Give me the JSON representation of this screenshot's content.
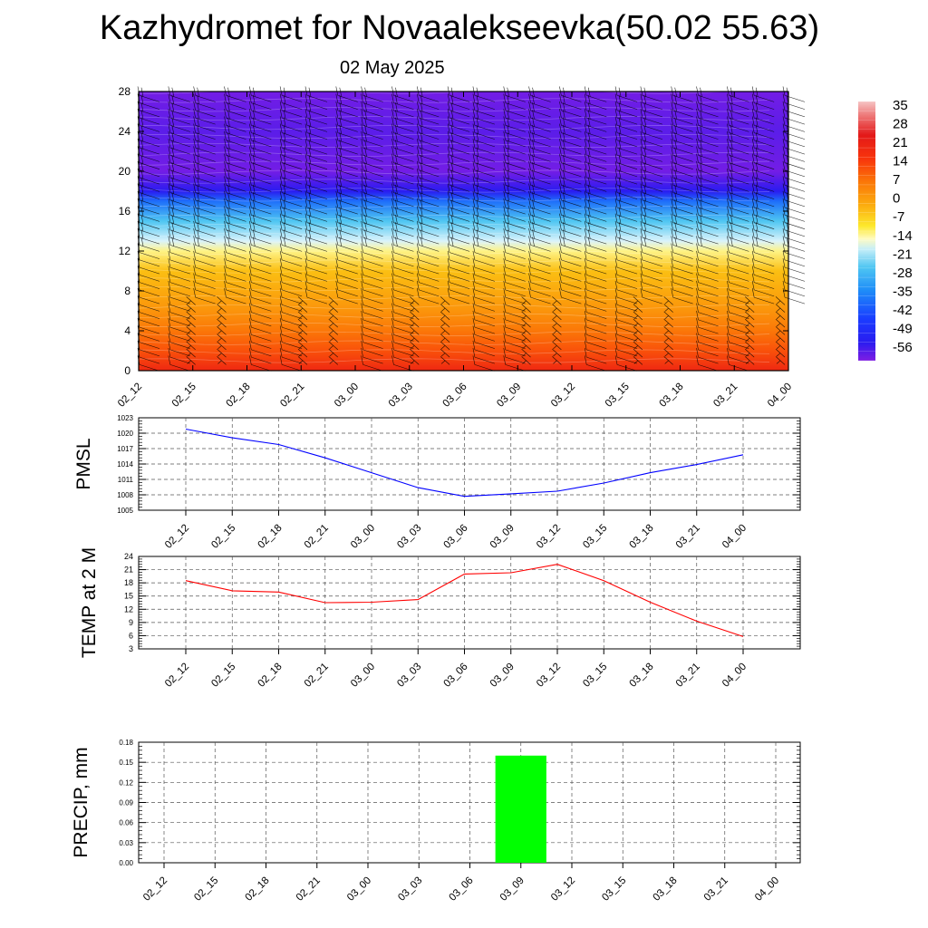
{
  "title": "Kazhydromet for Novaalekseevka(50.02 55.63)",
  "subtitle": "02 May 2025",
  "time_labels": [
    "02_12",
    "02_15",
    "02_18",
    "02_21",
    "03_00",
    "03_03",
    "03_06",
    "03_09",
    "03_12",
    "03_15",
    "03_18",
    "03_21",
    "04_00"
  ],
  "chart_data": [
    {
      "type": "heatmap",
      "title": "Kazhydromet for Novaalekseevka(50.02 55.63)",
      "subtitle": "02 May 2025",
      "x": [
        "02_12",
        "02_15",
        "02_18",
        "02_21",
        "03_00",
        "03_03",
        "03_06",
        "03_09",
        "03_12",
        "03_15",
        "03_18",
        "03_21",
        "04_00"
      ],
      "ylim": [
        0,
        28
      ],
      "yticks": [
        0,
        4,
        8,
        12,
        16,
        20,
        24,
        28
      ],
      "levels_temperature": [
        {
          "level": 0,
          "value": 24
        },
        {
          "level": 2,
          "value": 18
        },
        {
          "level": 4,
          "value": 14
        },
        {
          "level": 6,
          "value": 9
        },
        {
          "level": 8,
          "value": 5
        },
        {
          "level": 10,
          "value": 1
        },
        {
          "level": 12,
          "value": -8
        },
        {
          "level": 13,
          "value": -15
        },
        {
          "level": 15,
          "value": -28
        },
        {
          "level": 17,
          "value": -42
        },
        {
          "level": 18,
          "value": -56
        },
        {
          "level": 20,
          "value": -62
        },
        {
          "level": 24,
          "value": -60
        },
        {
          "level": 28,
          "value": -62
        }
      ],
      "colorbar": {
        "labels": [
          "35",
          "28",
          "21",
          "14",
          "7",
          "0",
          "-7",
          "-14",
          "-21",
          "-28",
          "-35",
          "-42",
          "-49",
          "-56"
        ]
      },
      "overlay": "wind barbs"
    },
    {
      "type": "line",
      "ylabel": "PMSL",
      "x": [
        "02_12",
        "02_15",
        "02_18",
        "02_21",
        "03_00",
        "03_03",
        "03_06",
        "03_09",
        "03_12",
        "03_15",
        "03_18",
        "03_21",
        "04_00"
      ],
      "series": [
        {
          "values": [
            1020.8,
            1019.1,
            1017.8,
            1015.2,
            1012.3,
            1009.4,
            1007.7,
            1008.2,
            1008.7,
            1010.3,
            1012.3,
            1013.9,
            1015.8
          ],
          "color": "#0000ff"
        }
      ],
      "ylim": [
        1005,
        1023
      ],
      "yticks": [
        "1023",
        "1020",
        "1017",
        "1014",
        "1011",
        "1008",
        "1005"
      ],
      "grid": true
    },
    {
      "type": "line",
      "ylabel": "TEMP at 2 M",
      "x": [
        "02_12",
        "02_15",
        "02_18",
        "02_21",
        "03_00",
        "03_03",
        "03_06",
        "03_09",
        "03_12",
        "03_15",
        "03_18",
        "03_21",
        "04_00"
      ],
      "series": [
        {
          "values": [
            18.5,
            16.2,
            15.9,
            13.5,
            13.6,
            14.2,
            20.0,
            20.3,
            22.2,
            18.5,
            13.6,
            9.3,
            5.8
          ],
          "color": "#ff0000"
        }
      ],
      "ylim": [
        3,
        24
      ],
      "yticks": [
        "24",
        "21",
        "18",
        "15",
        "12",
        "9",
        "6",
        "3"
      ],
      "grid": true
    },
    {
      "type": "bar",
      "ylabel": "PRECIP, mm",
      "categories": [
        "02_12",
        "02_15",
        "02_18",
        "02_21",
        "03_00",
        "03_03",
        "03_06",
        "03_09",
        "03_12",
        "03_15",
        "03_18",
        "03_21",
        "04_00"
      ],
      "values": [
        0,
        0,
        0,
        0,
        0,
        0,
        0,
        0.16,
        0,
        0,
        0,
        0,
        0
      ],
      "color": "#00ff00",
      "ylim": [
        0,
        0.18
      ],
      "yticks": [
        "0.18",
        "0.15",
        "0.12",
        "0.09",
        "0.06",
        "0.03",
        "0.00"
      ],
      "grid": true
    }
  ]
}
